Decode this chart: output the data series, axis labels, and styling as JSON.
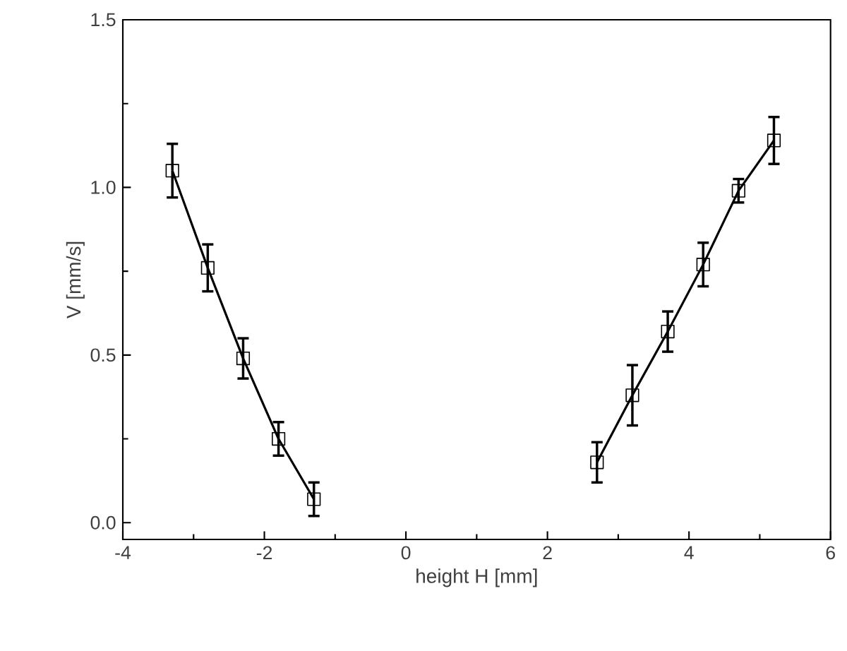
{
  "chart_data": {
    "type": "line",
    "xlabel": "height H [mm]",
    "ylabel": "V [mm/s]",
    "xlim": [
      -4,
      6
    ],
    "xticks": [
      -4,
      -2,
      0,
      2,
      4,
      6
    ],
    "ylim": [
      -0.05,
      1.5
    ],
    "yticks": [
      {
        "value": 0,
        "label": "0.0"
      },
      {
        "value": 0.5,
        "label": "0.5"
      },
      {
        "value": 1.0,
        "label": "1.0"
      },
      {
        "value": 1.5,
        "label": "1.5"
      }
    ],
    "marker": "square",
    "line_style": "solid",
    "grid": false,
    "series": [
      {
        "color": "#000000",
        "x": [
          -3.3,
          -2.8,
          -2.3,
          -1.8,
          -1.3
        ],
        "values": [
          1.05,
          0.76,
          0.49,
          0.25,
          0.07
        ],
        "errors": [
          0.08,
          0.07,
          0.06,
          0.05,
          0.05
        ]
      },
      {
        "color": "#000000",
        "x": [
          2.7,
          3.2,
          3.7,
          4.2,
          4.7,
          5.2
        ],
        "values": [
          0.18,
          0.38,
          0.57,
          0.77,
          0.99,
          1.14
        ],
        "errors": [
          0.06,
          0.09,
          0.06,
          0.065,
          0.035,
          0.07
        ]
      }
    ]
  }
}
